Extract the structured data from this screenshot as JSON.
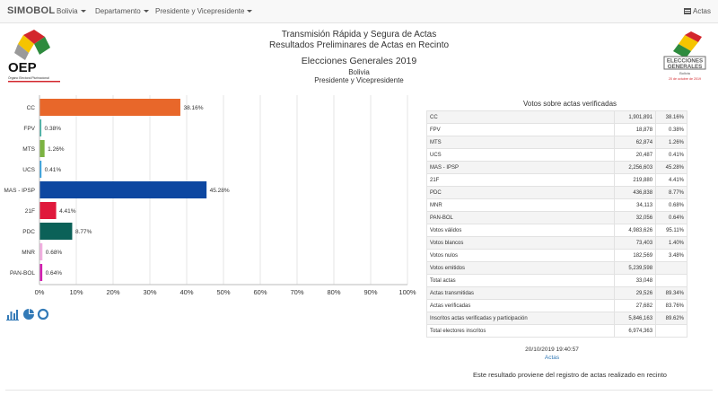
{
  "nav": {
    "brand": "SIMOBOL",
    "menu": [
      "Bolivia",
      "Departamento",
      "Presidente y Vicepresidente"
    ],
    "actas": "Actas"
  },
  "header": {
    "title1": "Transmisión Rápida y Segura de Actas",
    "title2": "Resultados Preliminares de Actas en Recinto",
    "election": "Elecciones Generales 2019",
    "country": "Bolivia",
    "office": "Presidente y Vicepresidente"
  },
  "logos": {
    "oep": {
      "text": "OEP",
      "sub": "Órgano Electoral Plurinacional"
    },
    "elecciones": {
      "line1": "ELECCIONES",
      "line2": "GENERALES",
      "line3": "Bolivia",
      "date": "20 de octubre de 2019"
    }
  },
  "chart_data": {
    "type": "bar",
    "orientation": "horizontal",
    "categories": [
      "CC",
      "FPV",
      "MTS",
      "UCS",
      "MAS - IPSP",
      "21F",
      "PDC",
      "MNR",
      "PAN-BOL"
    ],
    "values": [
      38.16,
      0.38,
      1.26,
      0.41,
      45.28,
      4.41,
      8.77,
      0.68,
      0.64
    ],
    "value_labels": [
      "38.16%",
      "0.38%",
      "1.26%",
      "0.41%",
      "45.28%",
      "4.41%",
      "8.77%",
      "0.68%",
      "0.64%"
    ],
    "colors": [
      "#e8672a",
      "#3eb0a3",
      "#7cb342",
      "#2b9fe0",
      "#0d47a1",
      "#e0193c",
      "#0b6158",
      "#f2aee0",
      "#d21eb0"
    ],
    "xlim": [
      0,
      100
    ],
    "xticks": [
      "0%",
      "10%",
      "20%",
      "30%",
      "40%",
      "50%",
      "60%",
      "70%",
      "80%",
      "90%",
      "100%"
    ],
    "grid": true
  },
  "results": {
    "title": "Votos sobre actas verificadas",
    "rows": [
      [
        "CC",
        "1,901,891",
        "38.16%"
      ],
      [
        "FPV",
        "18,878",
        "0.38%"
      ],
      [
        "MTS",
        "62,874",
        "1.26%"
      ],
      [
        "UCS",
        "20,487",
        "0.41%"
      ],
      [
        "MAS - IPSP",
        "2,256,603",
        "45.28%"
      ],
      [
        "21F",
        "219,880",
        "4.41%"
      ],
      [
        "PDC",
        "436,838",
        "8.77%"
      ],
      [
        "MNR",
        "34,113",
        "0.68%"
      ],
      [
        "PAN-BOL",
        "32,056",
        "0.64%"
      ],
      [
        "Votos válidos",
        "4,983,626",
        "95.11%"
      ],
      [
        "Votos blancos",
        "73,403",
        "1.40%"
      ],
      [
        "Votos nulos",
        "182,569",
        "3.48%"
      ],
      [
        "Votos emitidos",
        "5,239,598",
        ""
      ],
      [
        "Total actas",
        "33,048",
        ""
      ],
      [
        "Actas transmitidas",
        "29,526",
        "89.34%"
      ],
      [
        "Actas verificadas",
        "27,682",
        "83.76%"
      ],
      [
        "Inscritos actas verificadas y participación",
        "5,846,163",
        "89.62%"
      ],
      [
        "Total electores inscritos",
        "6,974,363",
        ""
      ]
    ]
  },
  "footer": {
    "timestamp": "20/10/2019 19:40:57",
    "link": "Actas",
    "note": "Este resultado proviene del registro de actas realizado en recinto"
  },
  "icons": [
    "bar-chart-icon",
    "pie-chart-icon",
    "donut-chart-icon"
  ]
}
